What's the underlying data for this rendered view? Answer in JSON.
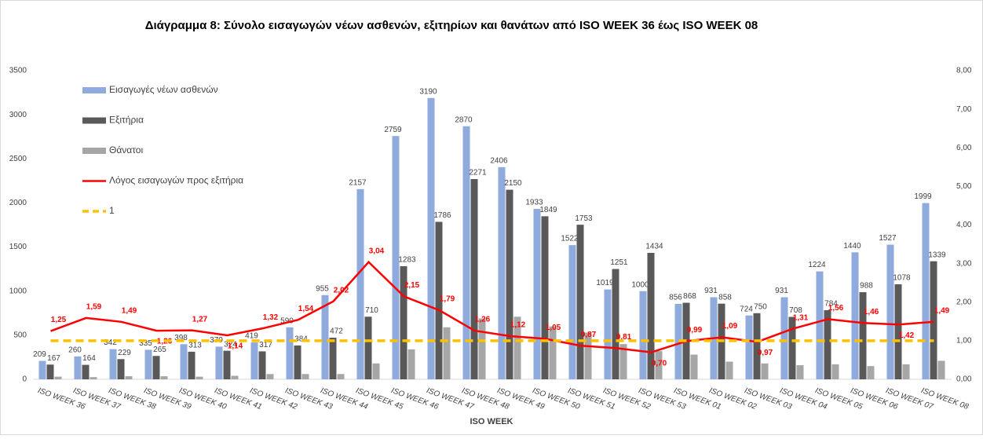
{
  "chart_data": {
    "type": "bar",
    "title": "Διάγραμμα 8: Σύνολο εισαγωγών νέων ασθενών, εξιτηρίων και θανάτων από ISO WEEK 36 έως ISO WEEK 08",
    "x_label": "ISO WEEK",
    "categories": [
      "ISO WEEK 36",
      "ISO WEEK 37",
      "ISO WEEK 38",
      "ISO WEEK 39",
      "ISO WEEK 40",
      "ISO WEEK 41",
      "ISO WEEK 42",
      "ISO WEEK 43",
      "ISO WEEK 44",
      "ISO WEEK 45",
      "ISO WEEK 46",
      "ISO WEEK 47",
      "ISO WEEK 48",
      "ISO WEEK 49",
      "ISO WEEK 50",
      "ISO WEEK 51",
      "ISO WEEK 52",
      "ISO WEEK 53",
      "ISO WEEK 01",
      "ISO WEEK 02",
      "ISO WEEK 03",
      "ISO WEEK 04",
      "ISO WEEK 05",
      "ISO WEEK 06",
      "ISO WEEK 07",
      "ISO WEEK 08"
    ],
    "series": [
      {
        "name": "Εισαγωγές νέων ασθενών",
        "type": "bar",
        "color": "#8faadc",
        "data_labels": true,
        "values": [
          209,
          260,
          342,
          335,
          398,
          370,
          419,
          590,
          955,
          2157,
          2759,
          3190,
          2870,
          2406,
          1933,
          1522,
          1019,
          1000,
          856,
          931,
          724,
          931,
          1224,
          1440,
          1527,
          1999
        ]
      },
      {
        "name": "Εξιτήρια",
        "type": "bar",
        "color": "#595959",
        "data_labels": true,
        "values": [
          167,
          164,
          229,
          265,
          313,
          324,
          317,
          384,
          472,
          710,
          1283,
          1786,
          2271,
          2150,
          1849,
          1753,
          1251,
          1434,
          868,
          858,
          750,
          708,
          784,
          988,
          1078,
          1339
        ]
      },
      {
        "name": "Θάνατοι",
        "type": "bar",
        "color": "#a6a6a6",
        "data_labels": false,
        "values": [
          30,
          25,
          35,
          35,
          30,
          40,
          60,
          60,
          60,
          180,
          340,
          590,
          690,
          710,
          600,
          530,
          400,
          320,
          280,
          200,
          180,
          160,
          170,
          150,
          170,
          210
        ]
      },
      {
        "name": "Λόγος εισαγωγών προς εξιτήρια",
        "type": "line",
        "axis": "y2",
        "color": "#ff0000",
        "data_labels": true,
        "values": [
          1.25,
          1.59,
          1.49,
          1.26,
          1.27,
          1.14,
          1.32,
          1.54,
          2.02,
          3.04,
          2.15,
          1.79,
          1.26,
          1.12,
          1.05,
          0.87,
          0.81,
          0.7,
          0.99,
          1.09,
          0.97,
          1.31,
          1.56,
          1.46,
          1.42,
          1.49
        ],
        "value_labels": [
          "1,25",
          "1,59",
          "1,49",
          "1,26",
          "1,27",
          "1,14",
          "1,32",
          "1,54",
          "2,02",
          "3,04",
          "2,15",
          "1,79",
          "1,26",
          "1,12",
          "1,05",
          "0,87",
          "0,81",
          "0,70",
          "0,99",
          "1,09",
          "0,97",
          "1,31",
          "1,56",
          "1,46",
          "1,42",
          "1,49"
        ]
      },
      {
        "name": "1",
        "type": "line",
        "axis": "y2",
        "color": "#ffc000",
        "style": "dashed",
        "data_labels": false,
        "values": [
          1,
          1,
          1,
          1,
          1,
          1,
          1,
          1,
          1,
          1,
          1,
          1,
          1,
          1,
          1,
          1,
          1,
          1,
          1,
          1,
          1,
          1,
          1,
          1,
          1,
          1
        ]
      }
    ],
    "ylim": [
      0,
      3500
    ],
    "yticks": [
      0,
      500,
      1000,
      1500,
      2000,
      2500,
      3000,
      3500
    ],
    "y2lim": [
      0,
      8
    ],
    "y2ticks": [
      {
        "value": 0,
        "label": "0,00"
      },
      {
        "value": 1,
        "label": "1,00"
      },
      {
        "value": 2,
        "label": "2,00"
      },
      {
        "value": 3,
        "label": "3,00"
      },
      {
        "value": 4,
        "label": "4,00"
      },
      {
        "value": 5,
        "label": "5,00"
      },
      {
        "value": 6,
        "label": "6,00"
      },
      {
        "value": 7,
        "label": "7,00"
      },
      {
        "value": 8,
        "label": "8,00"
      }
    ],
    "legend": "upper left",
    "grid": false
  }
}
